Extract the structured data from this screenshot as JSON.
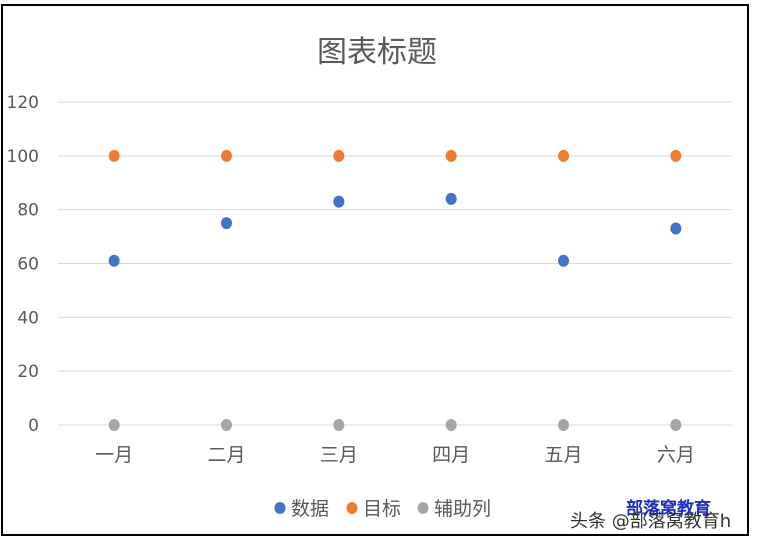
{
  "chart_data": {
    "type": "scatter",
    "title": "图表标题",
    "categories": [
      "一月",
      "二月",
      "三月",
      "四月",
      "五月",
      "六月"
    ],
    "series": [
      {
        "name": "数据",
        "color": "#4472c4",
        "values": [
          61,
          75,
          83,
          84,
          61,
          73
        ]
      },
      {
        "name": "目标",
        "color": "#ed7d31",
        "values": [
          100,
          100,
          100,
          100,
          100,
          100
        ]
      },
      {
        "name": "辅助列",
        "color": "#a5a5a5",
        "values": [
          0,
          0,
          0,
          0,
          0,
          0
        ]
      }
    ],
    "y_ticks": [
      "0",
      "20",
      "40",
      "60",
      "80",
      "100",
      "120"
    ],
    "ylim": [
      0,
      120
    ],
    "grid": true,
    "legend_position": "bottom"
  },
  "watermark": {
    "brand": "部落窝教育",
    "source": "头条 @部落窝教育h"
  }
}
